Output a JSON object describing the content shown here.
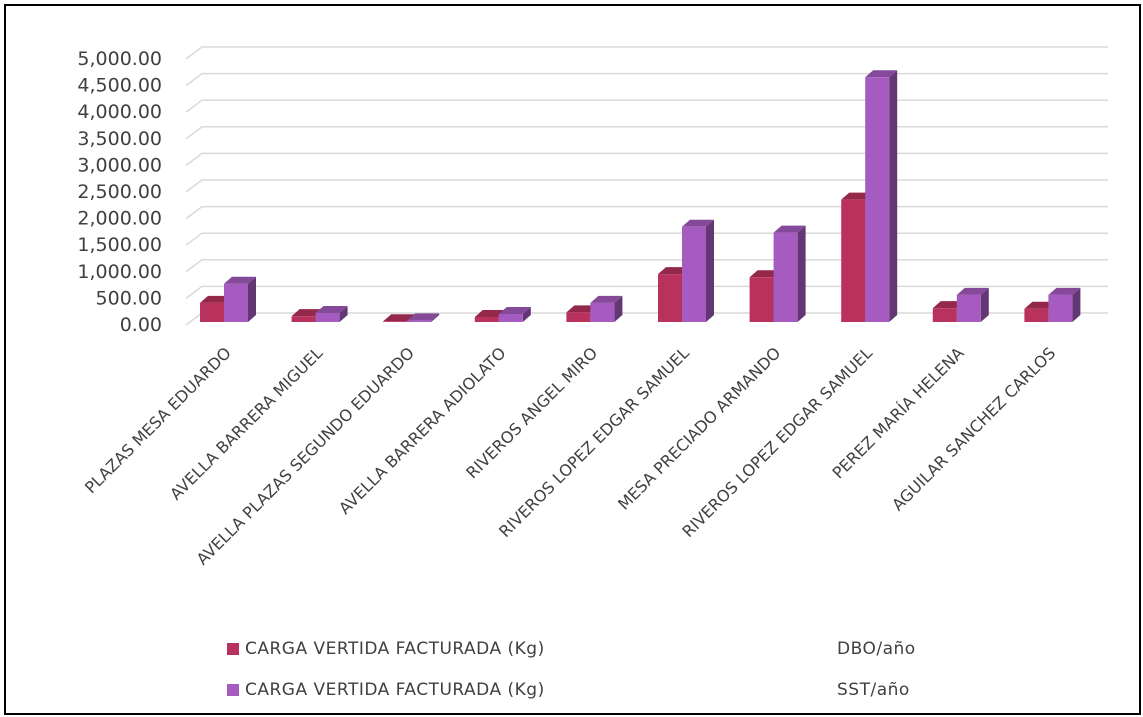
{
  "colors": {
    "series_1": "#b9325e",
    "series_2": "#a55bbf",
    "grid": "#d9d9d9",
    "text": "#404040",
    "border": "#000000"
  },
  "chart_data": {
    "type": "bar",
    "title": "",
    "xlabel": "",
    "ylabel": "",
    "ylim": [
      0,
      5000
    ],
    "yticks": [
      "0.00",
      "500.00",
      "1,000.00",
      "1,500.00",
      "2,000.00",
      "2,500.00",
      "3,000.00",
      "3,500.00",
      "4,000.00",
      "4,500.00",
      "5,000.00"
    ],
    "grid": true,
    "legend_position": "bottom",
    "style": "3d-clustered-column",
    "categories": [
      "PLAZAS MESA  EDUARDO",
      "AVELLA BARRERA MIGUEL",
      "AVELLA PLAZAS SEGUNDO EDUARDO",
      "AVELLA BARRERA ADIOLATO",
      "RIVEROS ANGEL MIRO",
      "RIVEROS LOPEZ EDGAR SAMUEL",
      "MESA PRECIADO ARMANDO",
      "RIVEROS LOPEZ EDGAR SAMUEL",
      "PEREZ MARÍA HELENA",
      "AGUILAR SANCHEZ CARLOS"
    ],
    "series": [
      {
        "name": "CARGA VERTIDA FACTURADA (Kg)",
        "unit": "DBO/año",
        "values": [
          360,
          110,
          15,
          95,
          180,
          900,
          840,
          2300,
          260,
          250
        ]
      },
      {
        "name": "CARGA VERTIDA FACTURADA (Kg)",
        "unit": "SST/año",
        "values": [
          720,
          170,
          30,
          150,
          360,
          1790,
          1680,
          4600,
          510,
          510
        ]
      }
    ]
  }
}
